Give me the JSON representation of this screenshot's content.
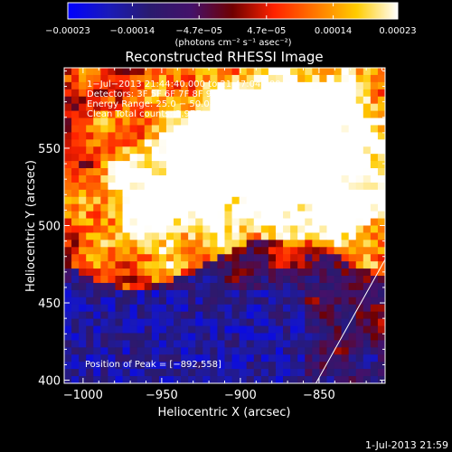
{
  "chart_data": {
    "type": "heatmap",
    "title": "Reconstructed RHESSI Image",
    "xlabel": "Heliocentric X (arcsec)",
    "ylabel": "Heliocentric Y (arcsec)",
    "xlim": [
      -1012,
      -808
    ],
    "ylim": [
      398,
      602
    ],
    "xticks": [
      -1000,
      -950,
      -900,
      -850
    ],
    "xtick_labels": [
      "−1000",
      "−950",
      "−900",
      "−850"
    ],
    "yticks": [
      400,
      450,
      500,
      550
    ],
    "ytick_labels": [
      "400",
      "450",
      "500",
      "550"
    ],
    "colorbar": {
      "colormap": "blue-black-red-yellow-white",
      "range": [
        -0.00023,
        0.00023
      ],
      "tick_labels": [
        "−0.00023",
        "−0.00014",
        "−4.7e−05",
        "4.7e−05",
        "0.00014",
        "0.00023"
      ],
      "tick_values": [
        -0.00023,
        -0.00014,
        -4.7e-05,
        4.7e-05,
        0.00014,
        0.00023
      ],
      "unit_label": "(photons cm⁻² s⁻¹ asec⁻²)"
    },
    "annotations": {
      "time_range": "1−Jul−2013 21:44:40.000 to 21:47:04.000",
      "detectors": "Detectors: 3F 5F 6F 7F 8F 9F, All 0",
      "energy": "Energy Range: 25.0 − 50.0 keV",
      "clean": "Clean      Total counts: 3.97E+03",
      "peak": "Position of Peak = [−892,558]"
    },
    "limb_line": {
      "from": [
        -852,
        398
      ],
      "to": [
        -808,
        478
      ]
    },
    "peak_position": [
      -892,
      558
    ],
    "cmap_stops": [
      "#0000ff",
      "#1a1ab8",
      "#2a1a6e",
      "#44116a",
      "#700000",
      "#ff2200",
      "#ff7700",
      "#ffcc00",
      "#ffffff"
    ]
  },
  "footer": {
    "date_stamp": "1-Jul-2013 21:59"
  }
}
